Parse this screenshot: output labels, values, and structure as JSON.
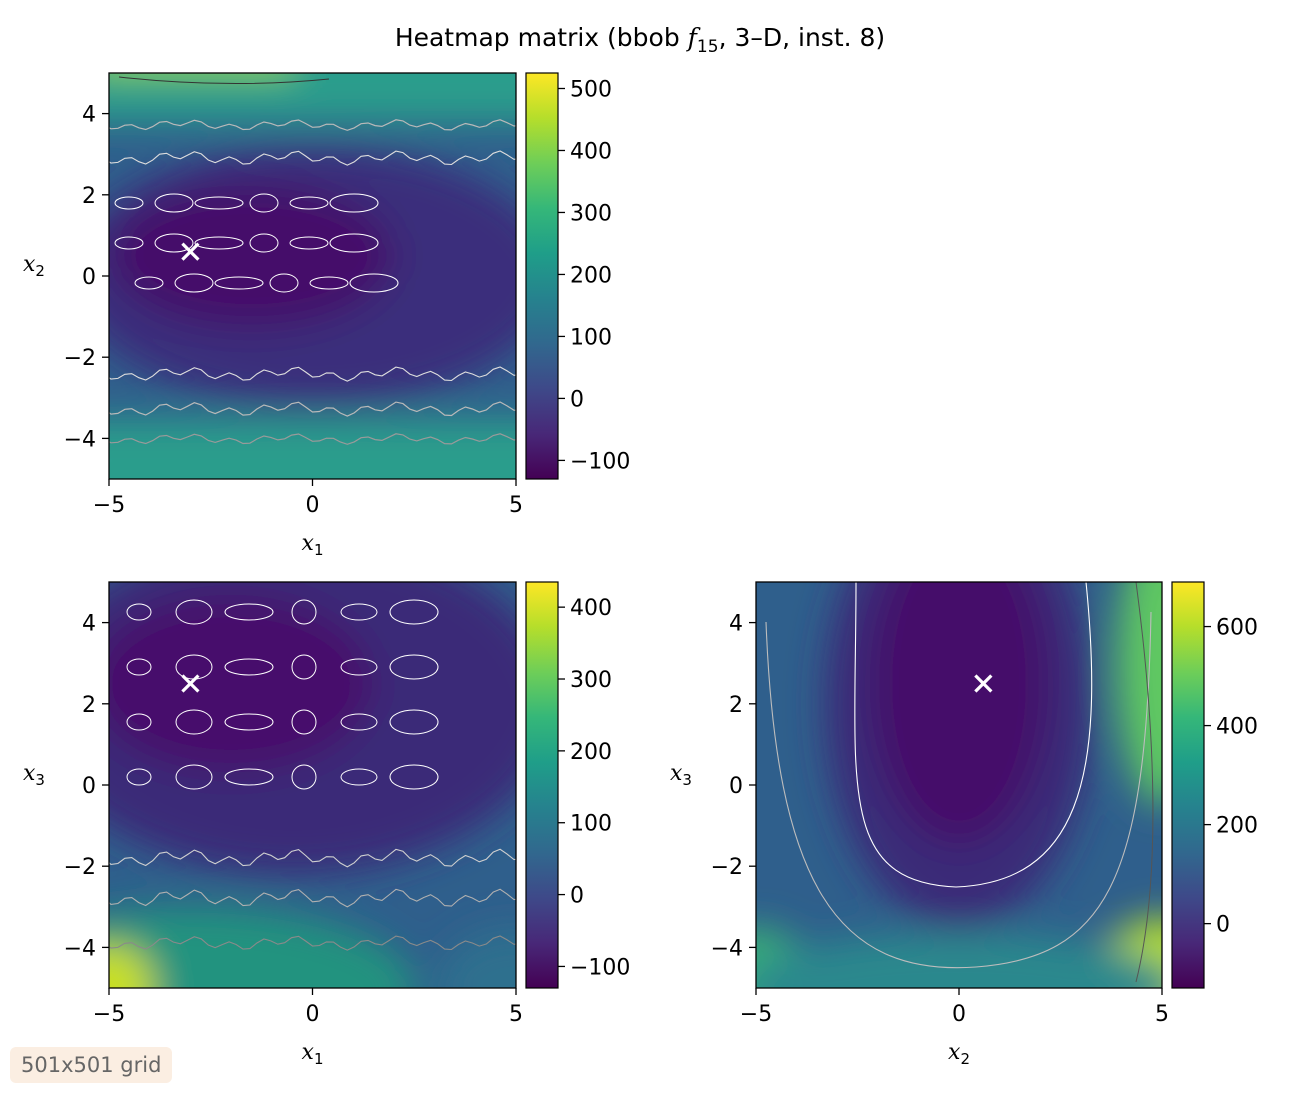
{
  "chart_data": {
    "type": "heatmap",
    "title_prefix": "Heatmap matrix (bbob ",
    "title_func_letter": "f",
    "title_func_sub": "15",
    "title_suffix": ", 3–D, inst. 8)",
    "colormap": "viridis",
    "colormap_stops": [
      "#440154",
      "#482878",
      "#3e4989",
      "#31688e",
      "#26828e",
      "#1f9e89",
      "#35b779",
      "#6ece58",
      "#b5de2b",
      "#fde725"
    ],
    "panels": [
      {
        "name": "x1-x2",
        "xlabel": "x",
        "xlabel_sub": "1",
        "ylabel": "x",
        "ylabel_sub": "2",
        "xlim": [
          -5,
          5
        ],
        "ylim": [
          -5,
          5
        ],
        "xticks": [
          -5,
          0,
          5
        ],
        "yticks": [
          -4,
          -2,
          0,
          2,
          4
        ],
        "colorbar_range": [
          -130,
          525
        ],
        "colorbar_ticks": [
          -100,
          0,
          100,
          200,
          300,
          400,
          500
        ],
        "marker": {
          "x": -3.0,
          "y": 0.6
        }
      },
      {
        "name": "x1-x3",
        "xlabel": "x",
        "xlabel_sub": "1",
        "ylabel": "x",
        "ylabel_sub": "3",
        "xlim": [
          -5,
          5
        ],
        "ylim": [
          -5,
          5
        ],
        "xticks": [
          -5,
          0,
          5
        ],
        "yticks": [
          -4,
          -2,
          0,
          2,
          4
        ],
        "colorbar_range": [
          -130,
          435
        ],
        "colorbar_ticks": [
          -100,
          0,
          100,
          200,
          300,
          400
        ],
        "marker": {
          "x": -3.0,
          "y": 2.5
        }
      },
      {
        "name": "x2-x3",
        "xlabel": "x",
        "xlabel_sub": "2",
        "ylabel": "x",
        "ylabel_sub": "3",
        "xlim": [
          -5,
          5
        ],
        "ylim": [
          -5,
          5
        ],
        "xticks": [
          -5,
          0,
          5
        ],
        "yticks": [
          -4,
          -2,
          0,
          2,
          4
        ],
        "colorbar_range": [
          -130,
          690
        ],
        "colorbar_ticks": [
          0,
          200,
          400,
          600
        ],
        "marker": {
          "x": 0.6,
          "y": 2.5
        }
      }
    ]
  },
  "badge_text": "501x501 grid"
}
